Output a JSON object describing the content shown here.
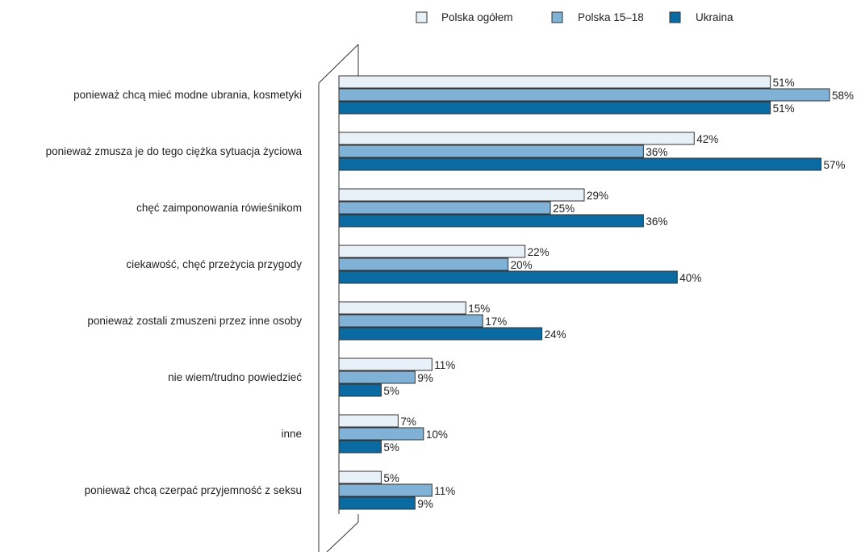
{
  "chart_data": {
    "type": "bar",
    "orientation": "horizontal",
    "categories": [
      "ponieważ chcą mieć modne ubrania, kosmetyki",
      "ponieważ zmusza je do tego ciężka sytuacja życiowa",
      "chęć zaimponowania rówieśnikom",
      "ciekawość, chęć przeżycia przygody",
      "ponieważ zostali zmuszeni przez inne osoby",
      "nie wiem/trudno powiedzieć",
      "inne",
      "ponieważ chcą czerpać przyjemność z seksu"
    ],
    "series": [
      {
        "name": "Polska ogółem",
        "color": "#e8f1f8",
        "values": [
          51,
          42,
          29,
          22,
          15,
          11,
          7,
          5
        ]
      },
      {
        "name": "Polska 15–18",
        "color": "#7fb2d6",
        "values": [
          58,
          36,
          25,
          20,
          17,
          9,
          10,
          11
        ]
      },
      {
        "name": "Ukraina",
        "color": "#0a6aa2",
        "values": [
          51,
          57,
          36,
          40,
          24,
          5,
          5,
          9
        ]
      }
    ],
    "value_suffix": "%",
    "xlim": [
      0,
      58
    ],
    "legend": "top",
    "grid": false
  }
}
